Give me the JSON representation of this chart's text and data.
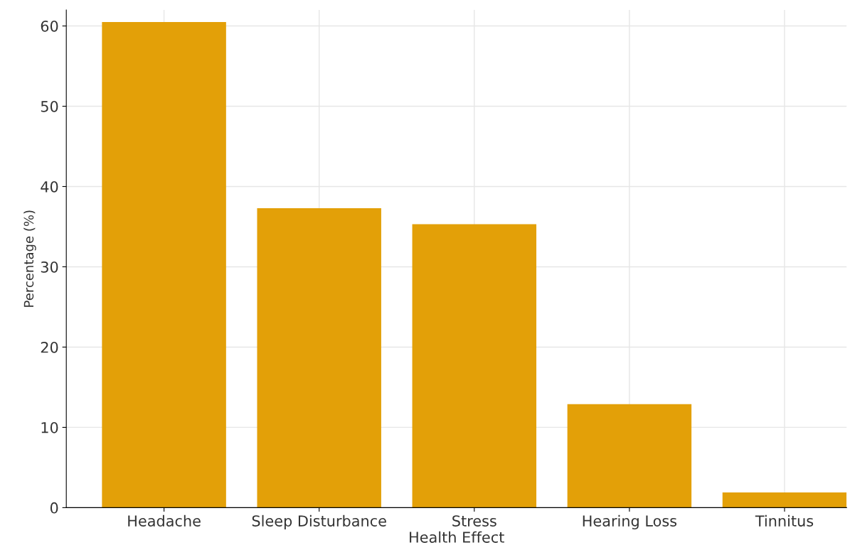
{
  "chart_data": {
    "type": "bar",
    "xlabel": "Health Effect",
    "ylabel": "Percentage (%)",
    "categories": [
      "Headache",
      "Sleep Disturbance",
      "Stress",
      "Hearing Loss",
      "Tinnitus"
    ],
    "values": [
      60.5,
      37.3,
      35.3,
      12.9,
      1.9
    ],
    "color": "#e3a008",
    "ylim": [
      0,
      62
    ],
    "yticks": [
      0,
      10,
      20,
      30,
      40,
      50,
      60
    ],
    "grid": true
  }
}
